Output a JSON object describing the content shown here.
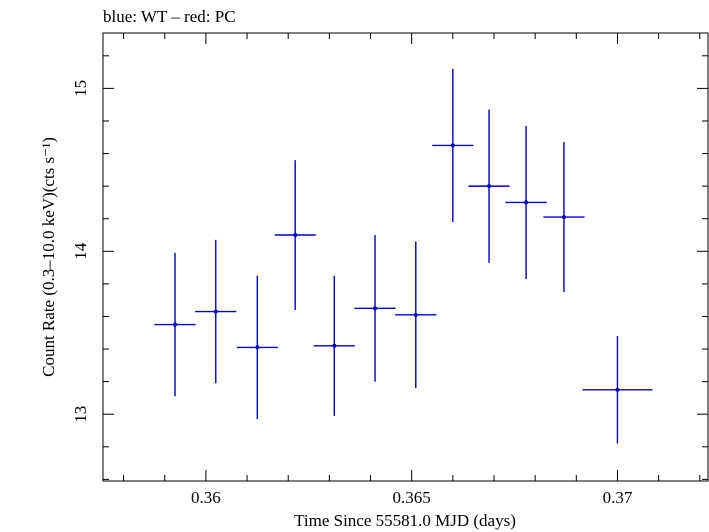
{
  "chart_data": {
    "type": "scatter",
    "title": "blue: WT – red: PC",
    "xlabel": "Time Since 55581.0 MJD (days)",
    "ylabel": "Count Rate (0.3–10.0 keV)(cts s⁻¹)",
    "xlim": [
      0.3575,
      0.3722
    ],
    "ylim": [
      12.59,
      15.34
    ],
    "xticks": [
      0.36,
      0.365,
      0.37
    ],
    "xtick_labels": [
      "0.36",
      "0.365",
      "0.37"
    ],
    "yticks": [
      13,
      14,
      15
    ],
    "ytick_labels": [
      "13",
      "14",
      "15"
    ],
    "grid": false,
    "legend": "none",
    "colors": {
      "series": "#0000cc",
      "axes": "#000000"
    },
    "series": [
      {
        "points": [
          {
            "x": 0.35925,
            "xerr": 0.0005,
            "y": 13.55,
            "yerr": 0.44
          },
          {
            "x": 0.36024,
            "xerr": 0.0005,
            "y": 13.63,
            "yerr": 0.44
          },
          {
            "x": 0.36125,
            "xerr": 0.0005,
            "y": 13.41,
            "yerr": 0.44
          },
          {
            "x": 0.36217,
            "xerr": 0.0005,
            "y": 14.1,
            "yerr": 0.46
          },
          {
            "x": 0.36312,
            "xerr": 0.0005,
            "y": 13.42,
            "yerr": 0.43
          },
          {
            "x": 0.36411,
            "xerr": 0.0005,
            "y": 13.65,
            "yerr": 0.45
          },
          {
            "x": 0.3651,
            "xerr": 0.0005,
            "y": 13.61,
            "yerr": 0.45
          },
          {
            "x": 0.366,
            "xerr": 0.0005,
            "y": 14.65,
            "yerr": 0.47
          },
          {
            "x": 0.36688,
            "xerr": 0.0005,
            "y": 14.4,
            "yerr": 0.47
          },
          {
            "x": 0.36778,
            "xerr": 0.0005,
            "y": 14.3,
            "yerr": 0.47
          },
          {
            "x": 0.3687,
            "xerr": 0.0005,
            "y": 14.21,
            "yerr": 0.46
          },
          {
            "x": 0.37,
            "xerr": 0.00085,
            "y": 13.15,
            "yerr": 0.33
          }
        ]
      }
    ]
  }
}
